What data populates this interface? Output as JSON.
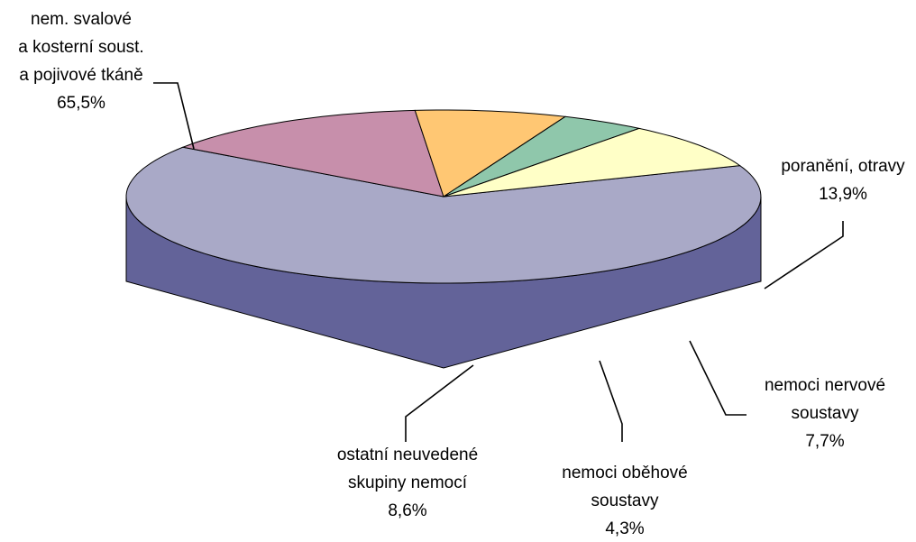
{
  "chart_data": {
    "type": "pie3d",
    "categories": [
      [
        "nem. svalové",
        "a kosterní soust.",
        "a pojivové tkáně"
      ],
      [
        "poranění, otravy"
      ],
      [
        "nemoci nervové",
        "soustavy"
      ],
      [
        "nemoci oběhové",
        "soustavy"
      ],
      [
        "ostatní neuvedené",
        "skupiny nemocí"
      ]
    ],
    "values": [
      65.5,
      13.9,
      7.7,
      4.3,
      8.6
    ],
    "value_labels": [
      "65,5%",
      "13,9%",
      "7,7%",
      "4,3%",
      "8,6%"
    ],
    "colors": [
      "#636399",
      "#993366",
      "#ff9900",
      "#339966",
      "#ffff99"
    ]
  }
}
